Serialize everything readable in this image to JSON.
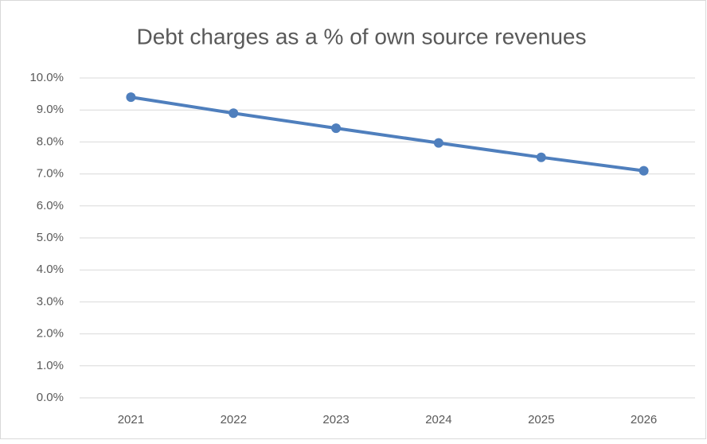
{
  "chart_data": {
    "type": "line",
    "title": "Debt charges as a % of own source revenues",
    "categories": [
      "2021",
      "2022",
      "2023",
      "2024",
      "2025",
      "2026"
    ],
    "series": [
      {
        "name": "Debt charges",
        "color": "#4f7fbd",
        "values": [
          9.4,
          8.9,
          8.43,
          7.97,
          7.52,
          7.1
        ]
      }
    ],
    "ylim": [
      0,
      10
    ],
    "yticks": [
      {
        "value": 0,
        "label": "0.0%"
      },
      {
        "value": 1,
        "label": "1.0%"
      },
      {
        "value": 2,
        "label": "2.0%"
      },
      {
        "value": 3,
        "label": "3.0%"
      },
      {
        "value": 4,
        "label": "4.0%"
      },
      {
        "value": 5,
        "label": "5.0%"
      },
      {
        "value": 6,
        "label": "6.0%"
      },
      {
        "value": 7,
        "label": "7.0%"
      },
      {
        "value": 8,
        "label": "8.0%"
      },
      {
        "value": 9,
        "label": "9.0%"
      },
      {
        "value": 10,
        "label": "10.0%"
      }
    ],
    "grid": true
  }
}
